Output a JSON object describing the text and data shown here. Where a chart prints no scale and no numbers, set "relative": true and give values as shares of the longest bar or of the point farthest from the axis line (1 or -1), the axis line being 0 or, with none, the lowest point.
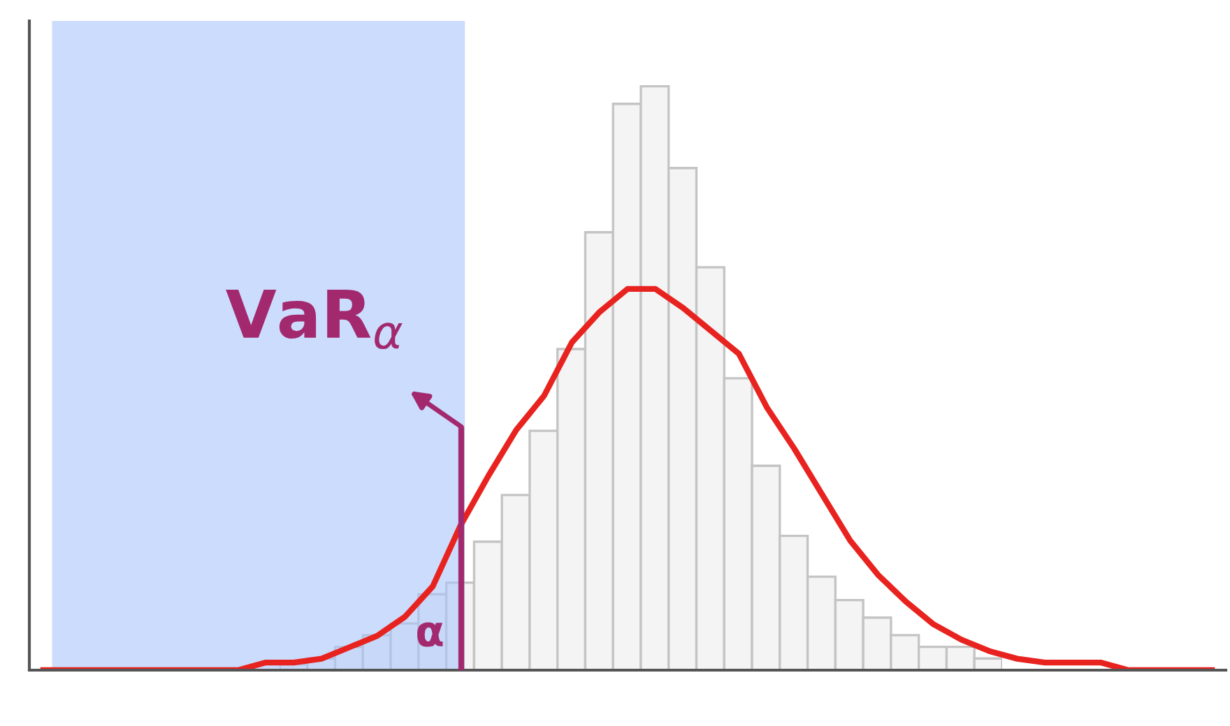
{
  "chart_data": [
    {
      "type": "bar",
      "relative": true,
      "color": "#f4f4f4",
      "categories": [
        null,
        null,
        null,
        null,
        null,
        null,
        null,
        null,
        null,
        null,
        null,
        null,
        null,
        null,
        null,
        null,
        null,
        null,
        null,
        null,
        null,
        null,
        null,
        null,
        null,
        null
      ],
      "values": [
        0.01,
        0.02,
        0.04,
        0.06,
        0.08,
        0.13,
        0.15,
        0.22,
        0.3,
        0.41,
        0.55,
        0.75,
        0.97,
        1,
        0.86,
        0.69,
        0.5,
        0.35,
        0.23,
        0.16,
        0.12,
        0.09,
        0.06,
        0.04,
        0.04,
        0.02
      ]
    },
    {
      "type": "line",
      "relative": true,
      "color": "#e8231f",
      "marker": "none",
      "line_style": "solid",
      "categories": [
        null,
        null,
        null,
        null,
        null,
        null,
        null,
        null,
        null,
        null,
        null,
        null,
        null,
        null,
        null,
        null,
        null,
        null,
        null,
        null,
        null,
        null,
        null,
        null,
        null,
        null,
        null,
        null,
        null,
        null,
        null,
        null,
        null,
        null,
        null,
        null,
        null,
        null,
        null,
        null,
        null,
        null,
        null
      ],
      "values": [
        0,
        0,
        0,
        0,
        0,
        0,
        0,
        0,
        0.02,
        0.02,
        0.03,
        0.06,
        0.09,
        0.14,
        0.22,
        0.38,
        0.51,
        0.63,
        0.72,
        0.86,
        0.94,
        1,
        1,
        0.95,
        0.89,
        0.83,
        0.69,
        0.58,
        0.46,
        0.34,
        0.25,
        0.18,
        0.12,
        0.08,
        0.05,
        0.03,
        0.02,
        0.02,
        0.02,
        0,
        0,
        0,
        0
      ],
      "annotations": [
        "VaR$_{α}$",
        "α"
      ]
    }
  ]
}
